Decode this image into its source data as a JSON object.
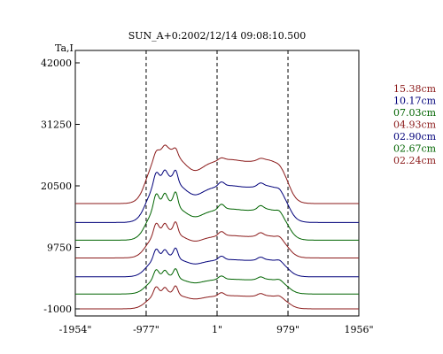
{
  "chart_data": {
    "type": "line",
    "title": "SUN_A+0:2002/12/14 09:08:10.500",
    "ylabel": "Ta,I",
    "xlabel": "",
    "x_ticks": [
      "-1954\"",
      "-977\"",
      "1\"",
      "979\"",
      "1956\""
    ],
    "x_tick_values": [
      -1954,
      -977,
      1,
      979,
      1956
    ],
    "y_ticks": [
      "42000",
      "31250",
      "20500",
      "9750",
      "-1000"
    ],
    "y_tick_values": [
      42000,
      31250,
      20500,
      9750,
      -1000
    ],
    "xlim": [
      -1954,
      1956
    ],
    "ylim": [
      -1000,
      42000
    ],
    "vlines": [
      -977,
      1,
      979
    ],
    "grid": false,
    "legend_position": "right",
    "series": [
      {
        "name": "15.38cm",
        "color": "#8b1a1a",
        "offset": 17400,
        "amp": 11000,
        "spikes": 0.2
      },
      {
        "name": "10.17cm",
        "color": "#00007a",
        "offset": 14100,
        "amp": 9200,
        "spikes": 0.45
      },
      {
        "name": "07.03cm",
        "color": "#006400",
        "offset": 11000,
        "amp": 7800,
        "spikes": 0.65
      },
      {
        "name": "04.93cm",
        "color": "#8b1a1a",
        "offset": 7900,
        "amp": 5600,
        "spikes": 0.75
      },
      {
        "name": "02.90cm",
        "color": "#00007a",
        "offset": 4600,
        "amp": 4300,
        "spikes": 0.85
      },
      {
        "name": "02.67cm",
        "color": "#006400",
        "offset": 1600,
        "amp": 3700,
        "spikes": 0.9
      },
      {
        "name": "02.24cm",
        "color": "#8b1a1a",
        "offset": -1000,
        "amp": 3300,
        "spikes": 0.95
      }
    ]
  }
}
